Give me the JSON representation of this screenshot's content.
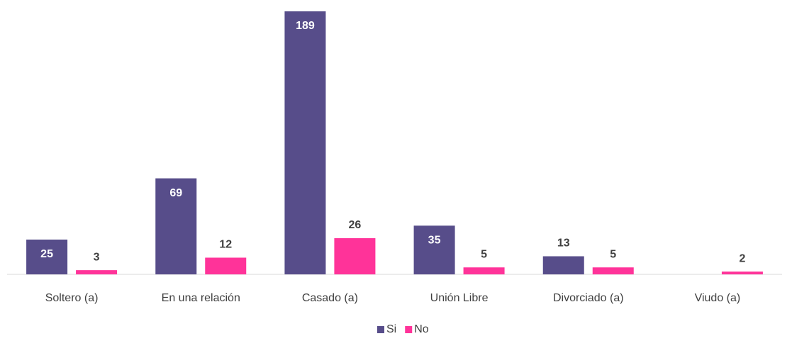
{
  "chart_data": {
    "type": "bar",
    "categories": [
      "Soltero (a)",
      "En una relación",
      "Casado (a)",
      "Unión Libre",
      "Divorciado (a)",
      "Viudo (a)"
    ],
    "series": [
      {
        "name": "Si",
        "color": "#574d8a",
        "values": [
          25,
          69,
          189,
          35,
          13,
          null
        ]
      },
      {
        "name": "No",
        "color": "#ff3399",
        "values": [
          3,
          12,
          26,
          5,
          5,
          2
        ]
      }
    ],
    "legend": "bottom"
  }
}
